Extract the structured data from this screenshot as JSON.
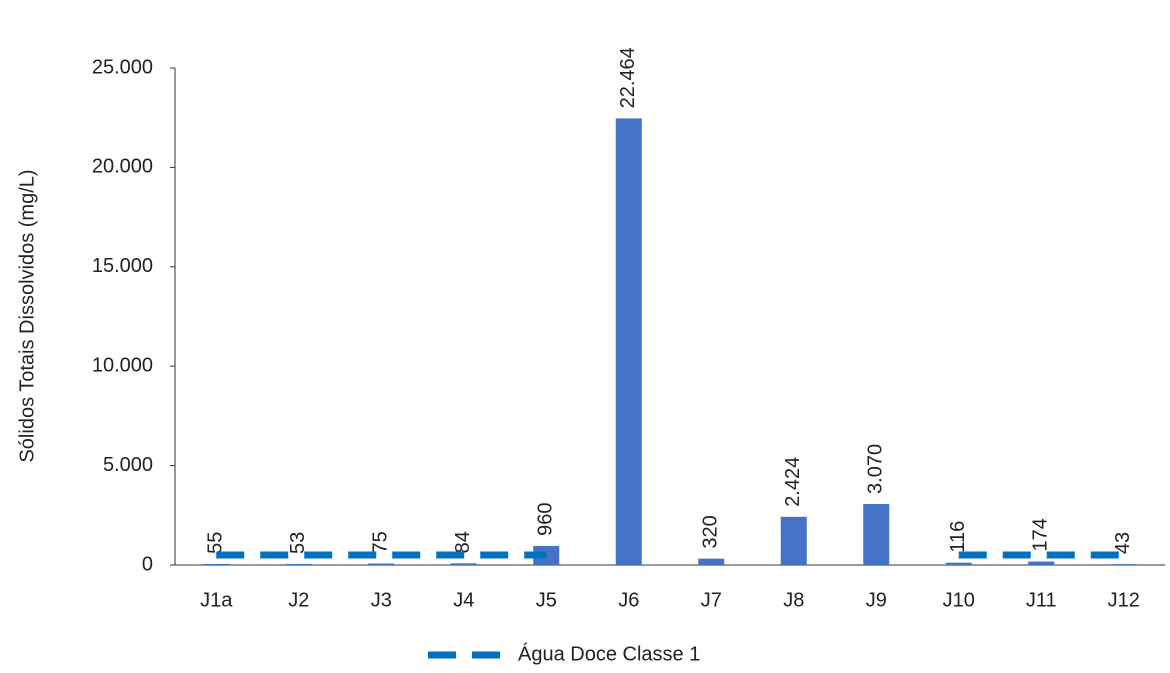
{
  "chart_data": {
    "type": "bar",
    "y_label": "Sólidos Totais Dissolvidos (mg/L)",
    "categories": [
      "J1a",
      "J2",
      "J3",
      "J4",
      "J5",
      "J6",
      "J7",
      "J8",
      "J9",
      "J10",
      "J11",
      "J12"
    ],
    "values": [
      55,
      53,
      75,
      84,
      960,
      22464,
      320,
      2424,
      3070,
      116,
      174,
      43
    ],
    "value_labels": [
      "55",
      "53",
      "75",
      "84",
      "960",
      "22.464",
      "320",
      "2.424",
      "3.070",
      "116",
      "174",
      "43"
    ],
    "color": "#4472c4",
    "ylim": [
      0,
      25000
    ],
    "yticks": [
      0,
      {
        "value": 5000,
        "label": "5.000"
      },
      {
        "value": 10000,
        "label": "10.000"
      },
      {
        "value": 15000,
        "label": "15.000"
      },
      {
        "value": 20000,
        "label": "20.000"
      },
      {
        "value": 25000,
        "label": "25.000"
      }
    ],
    "reference_line": {
      "name": "Água Doce Classe 1",
      "color": "#0070c0",
      "values": [
        500,
        500,
        500,
        500,
        500,
        null,
        null,
        null,
        null,
        500,
        500,
        500
      ]
    },
    "legend": "bottom"
  }
}
